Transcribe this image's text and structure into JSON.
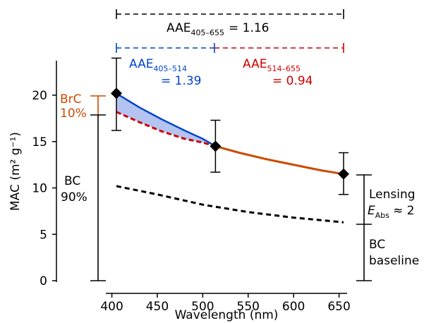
{
  "chart_data": {
    "type": "line",
    "xlabel": "Wavelength (nm)",
    "ylabel": "MAC (m² g⁻¹)",
    "xlim": [
      385,
      665
    ],
    "ylim": [
      0,
      24
    ],
    "x_ticks": [
      400,
      450,
      500,
      550,
      600,
      650
    ],
    "y_ticks": [
      0,
      5,
      10,
      15,
      20
    ],
    "measurements": [
      {
        "wavelength": 405,
        "mac": 20.2,
        "err_low": 16.2,
        "err_high": 24.0
      },
      {
        "wavelength": 514,
        "mac": 14.5,
        "err_low": 11.7,
        "err_high": 17.3
      },
      {
        "wavelength": 655,
        "mac": 11.5,
        "err_low": 9.3,
        "err_high": 13.8
      }
    ],
    "series": [
      {
        "role": "total-405-514",
        "color": "#0044cc",
        "x": [
          405,
          430,
          455,
          480,
          500,
          514
        ],
        "y": [
          20.2,
          18.7,
          17.4,
          16.2,
          15.3,
          14.5
        ]
      },
      {
        "role": "bc-lensed-405-514",
        "color": "#cc0000",
        "x": [
          405,
          430,
          455,
          480,
          500,
          514
        ],
        "y": [
          18.2,
          17.1,
          16.1,
          15.3,
          14.9,
          14.5
        ]
      },
      {
        "role": "total-514-655",
        "color": "#cc4a00",
        "x": [
          514,
          540,
          570,
          600,
          630,
          655
        ],
        "y": [
          14.5,
          13.8,
          13.1,
          12.5,
          11.9,
          11.5
        ]
      },
      {
        "role": "bc-baseline",
        "color": "#000000",
        "x": [
          405,
          450,
          500,
          550,
          600,
          655
        ],
        "y": [
          10.2,
          9.3,
          8.2,
          7.4,
          6.8,
          6.3
        ]
      }
    ],
    "annotations": {
      "aae_total": {
        "label": "AAE",
        "subscript": "405–655",
        "value": "= 1.16",
        "range": [
          405,
          655
        ]
      },
      "aae_blue": {
        "label": "AAE",
        "subscript": "405–514",
        "value": "= 1.39",
        "range": [
          405,
          514
        ]
      },
      "aae_red": {
        "label": "AAE",
        "subscript": "514–655",
        "value": "= 0.94",
        "range": [
          514,
          655
        ]
      },
      "brc": {
        "line1": "BrC",
        "line2": "10%",
        "y_range": [
          18.1,
          20.2
        ]
      },
      "bc": {
        "line1": "BC",
        "line2": "90%",
        "y_range": [
          0,
          18.1
        ]
      },
      "lensing": {
        "line1": "Lensing",
        "e_label": "E",
        "e_subscript": "Abs",
        "e_value": "≈ 2",
        "y_range": [
          6.3,
          11.5
        ]
      },
      "baseline": {
        "line1": "BC",
        "line2": "baseline",
        "y_range": [
          0,
          6.3
        ]
      }
    },
    "colors": {
      "blue": "#0044cc",
      "red": "#cc0000",
      "orange": "#cc4a00",
      "fill": "#b4c3f0",
      "marker": "#000000"
    }
  }
}
